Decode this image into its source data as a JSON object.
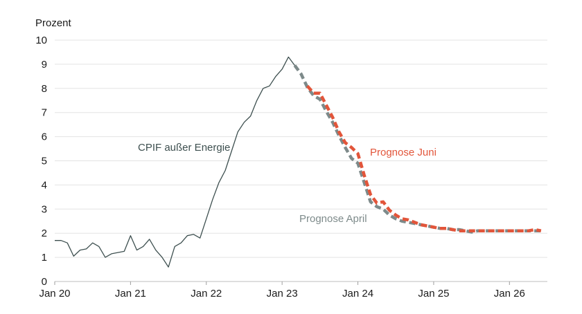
{
  "chart_data": {
    "type": "line",
    "ylabel": "Prozent",
    "ylim": [
      0,
      10
    ],
    "yticks": [
      "0",
      "1",
      "2",
      "3",
      "4",
      "5",
      "6",
      "7",
      "8",
      "9",
      "10"
    ],
    "xlim": [
      "2020-01",
      "2026-07"
    ],
    "xticks": [
      {
        "date": "2020-01",
        "label": "Jan 20"
      },
      {
        "date": "2021-01",
        "label": "Jan 21"
      },
      {
        "date": "2022-01",
        "label": "Jan 22"
      },
      {
        "date": "2023-01",
        "label": "Jan 23"
      },
      {
        "date": "2024-01",
        "label": "Jan 24"
      },
      {
        "date": "2025-01",
        "label": "Jan 25"
      },
      {
        "date": "2026-01",
        "label": "Jan 26"
      }
    ],
    "grid": true,
    "series": [
      {
        "name": "CPIF außer Energie",
        "color": "#3d4f4f",
        "style": "solid",
        "points": [
          [
            "2020-01",
            1.7
          ],
          [
            "2020-02",
            1.7
          ],
          [
            "2020-03",
            1.6
          ],
          [
            "2020-04",
            1.05
          ],
          [
            "2020-05",
            1.3
          ],
          [
            "2020-06",
            1.35
          ],
          [
            "2020-07",
            1.6
          ],
          [
            "2020-08",
            1.45
          ],
          [
            "2020-09",
            1.0
          ],
          [
            "2020-10",
            1.15
          ],
          [
            "2020-11",
            1.2
          ],
          [
            "2020-12",
            1.25
          ],
          [
            "2021-01",
            1.9
          ],
          [
            "2021-02",
            1.3
          ],
          [
            "2021-03",
            1.45
          ],
          [
            "2021-04",
            1.75
          ],
          [
            "2021-05",
            1.3
          ],
          [
            "2021-06",
            1.0
          ],
          [
            "2021-07",
            0.6
          ],
          [
            "2021-08",
            1.45
          ],
          [
            "2021-09",
            1.6
          ],
          [
            "2021-10",
            1.9
          ],
          [
            "2021-11",
            1.95
          ],
          [
            "2021-12",
            1.8
          ],
          [
            "2022-01",
            2.6
          ],
          [
            "2022-02",
            3.4
          ],
          [
            "2022-03",
            4.1
          ],
          [
            "2022-04",
            4.6
          ],
          [
            "2022-05",
            5.4
          ],
          [
            "2022-06",
            6.2
          ],
          [
            "2022-07",
            6.6
          ],
          [
            "2022-08",
            6.85
          ],
          [
            "2022-09",
            7.5
          ],
          [
            "2022-10",
            8.0
          ],
          [
            "2022-11",
            8.1
          ],
          [
            "2022-12",
            8.5
          ],
          [
            "2023-01",
            8.8
          ],
          [
            "2023-02",
            9.3
          ],
          [
            "2023-03",
            8.95
          ]
        ]
      },
      {
        "name": "Prognose April",
        "color": "#7d8a8a",
        "style": "dashed",
        "points": [
          [
            "2023-03",
            8.95
          ],
          [
            "2023-04",
            8.6
          ],
          [
            "2023-05",
            8.05
          ],
          [
            "2023-06",
            7.7
          ],
          [
            "2023-07",
            7.55
          ],
          [
            "2023-08",
            7.05
          ],
          [
            "2023-09",
            6.6
          ],
          [
            "2023-10",
            6.05
          ],
          [
            "2023-11",
            5.55
          ],
          [
            "2023-12",
            5.1
          ],
          [
            "2024-01",
            4.9
          ],
          [
            "2024-02",
            4.1
          ],
          [
            "2024-03",
            3.3
          ],
          [
            "2024-04",
            3.1
          ],
          [
            "2024-05",
            3.0
          ],
          [
            "2024-06",
            2.75
          ],
          [
            "2024-07",
            2.6
          ],
          [
            "2024-08",
            2.5
          ],
          [
            "2024-09",
            2.45
          ],
          [
            "2024-10",
            2.4
          ],
          [
            "2024-11",
            2.35
          ],
          [
            "2024-12",
            2.3
          ],
          [
            "2025-01",
            2.25
          ],
          [
            "2025-02",
            2.2
          ],
          [
            "2025-03",
            2.2
          ],
          [
            "2025-04",
            2.15
          ],
          [
            "2025-05",
            2.15
          ],
          [
            "2025-06",
            2.1
          ],
          [
            "2025-07",
            2.05
          ],
          [
            "2025-08",
            2.1
          ],
          [
            "2025-09",
            2.1
          ],
          [
            "2025-10",
            2.1
          ],
          [
            "2025-11",
            2.1
          ],
          [
            "2025-12",
            2.1
          ],
          [
            "2026-01",
            2.1
          ],
          [
            "2026-02",
            2.1
          ],
          [
            "2026-03",
            2.1
          ],
          [
            "2026-04",
            2.1
          ],
          [
            "2026-05",
            2.1
          ],
          [
            "2026-06",
            2.1
          ]
        ]
      },
      {
        "name": "Prognose Juni",
        "color": "#e2553a",
        "style": "dashed",
        "points": [
          [
            "2023-05",
            8.1
          ],
          [
            "2023-06",
            7.8
          ],
          [
            "2023-07",
            7.8
          ],
          [
            "2023-08",
            7.3
          ],
          [
            "2023-09",
            6.8
          ],
          [
            "2023-10",
            6.2
          ],
          [
            "2023-11",
            5.75
          ],
          [
            "2023-12",
            5.55
          ],
          [
            "2024-01",
            5.3
          ],
          [
            "2024-02",
            4.4
          ],
          [
            "2024-03",
            3.6
          ],
          [
            "2024-04",
            3.25
          ],
          [
            "2024-05",
            3.3
          ],
          [
            "2024-06",
            2.95
          ],
          [
            "2024-07",
            2.75
          ],
          [
            "2024-08",
            2.6
          ],
          [
            "2024-09",
            2.55
          ],
          [
            "2024-10",
            2.45
          ],
          [
            "2024-11",
            2.35
          ],
          [
            "2024-12",
            2.3
          ],
          [
            "2025-01",
            2.25
          ],
          [
            "2025-02",
            2.2
          ],
          [
            "2025-03",
            2.2
          ],
          [
            "2025-04",
            2.15
          ],
          [
            "2025-05",
            2.1
          ],
          [
            "2025-06",
            2.1
          ],
          [
            "2025-07",
            2.1
          ],
          [
            "2025-08",
            2.1
          ],
          [
            "2025-09",
            2.1
          ],
          [
            "2025-10",
            2.1
          ],
          [
            "2025-11",
            2.1
          ],
          [
            "2025-12",
            2.1
          ],
          [
            "2026-01",
            2.1
          ],
          [
            "2026-02",
            2.1
          ],
          [
            "2026-03",
            2.1
          ],
          [
            "2026-04",
            2.1
          ],
          [
            "2026-05",
            2.15
          ],
          [
            "2026-06",
            2.1
          ]
        ]
      }
    ]
  }
}
